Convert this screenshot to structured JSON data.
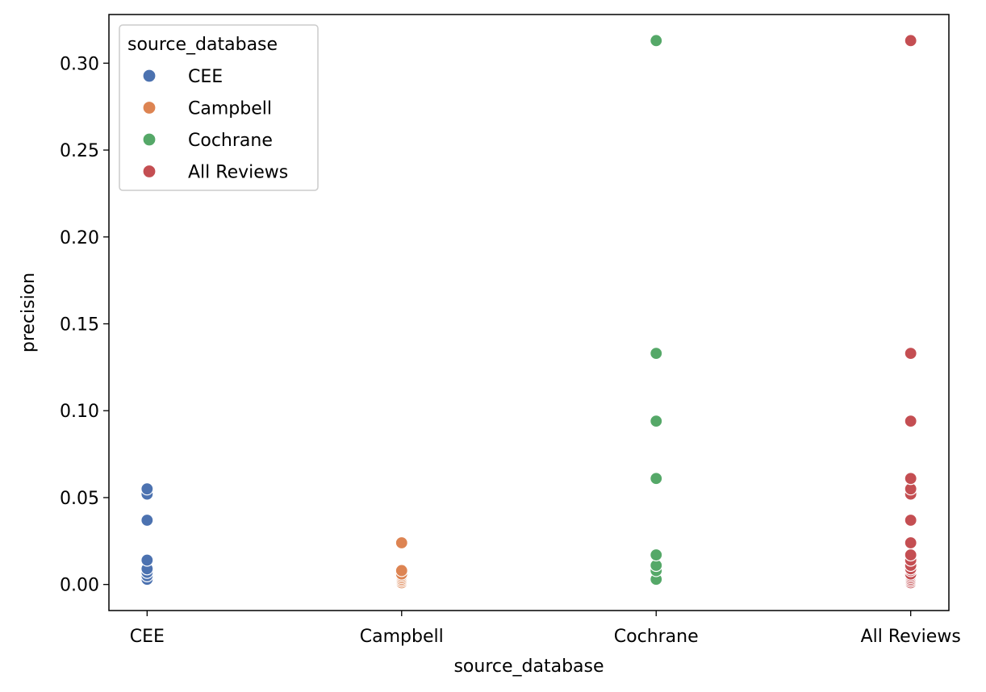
{
  "chart_data": {
    "type": "scatter",
    "title": "",
    "xlabel": "source_database",
    "ylabel": "precision",
    "categories": [
      "CEE",
      "Campbell",
      "Cochrane",
      "All Reviews"
    ],
    "ylim": [
      -0.015,
      0.328
    ],
    "yticks": [
      0.0,
      0.05,
      0.1,
      0.15,
      0.2,
      0.25,
      0.3
    ],
    "ytick_labels": [
      "0.00",
      "0.05",
      "0.10",
      "0.15",
      "0.20",
      "0.25",
      "0.30"
    ],
    "grid": false,
    "legend": {
      "title": "source_database",
      "position": "top-left"
    },
    "series": [
      {
        "name": "CEE",
        "color": "#4c72b0",
        "category": "CEE",
        "values": [
          0.003,
          0.005,
          0.007,
          0.009,
          0.014,
          0.037,
          0.052,
          0.055
        ]
      },
      {
        "name": "Campbell",
        "color": "#dd8452",
        "category": "Campbell",
        "values": [
          0.001,
          0.002,
          0.003,
          0.004,
          0.005,
          0.006,
          0.008,
          0.024
        ]
      },
      {
        "name": "Cochrane",
        "color": "#55a868",
        "category": "Cochrane",
        "values": [
          0.003,
          0.008,
          0.011,
          0.017,
          0.061,
          0.094,
          0.133,
          0.313
        ]
      },
      {
        "name": "All Reviews",
        "color": "#c44e52",
        "category": "All Reviews",
        "values": [
          0.001,
          0.002,
          0.003,
          0.004,
          0.005,
          0.006,
          0.008,
          0.009,
          0.011,
          0.014,
          0.017,
          0.024,
          0.037,
          0.052,
          0.055,
          0.061,
          0.094,
          0.133,
          0.313
        ]
      }
    ]
  }
}
